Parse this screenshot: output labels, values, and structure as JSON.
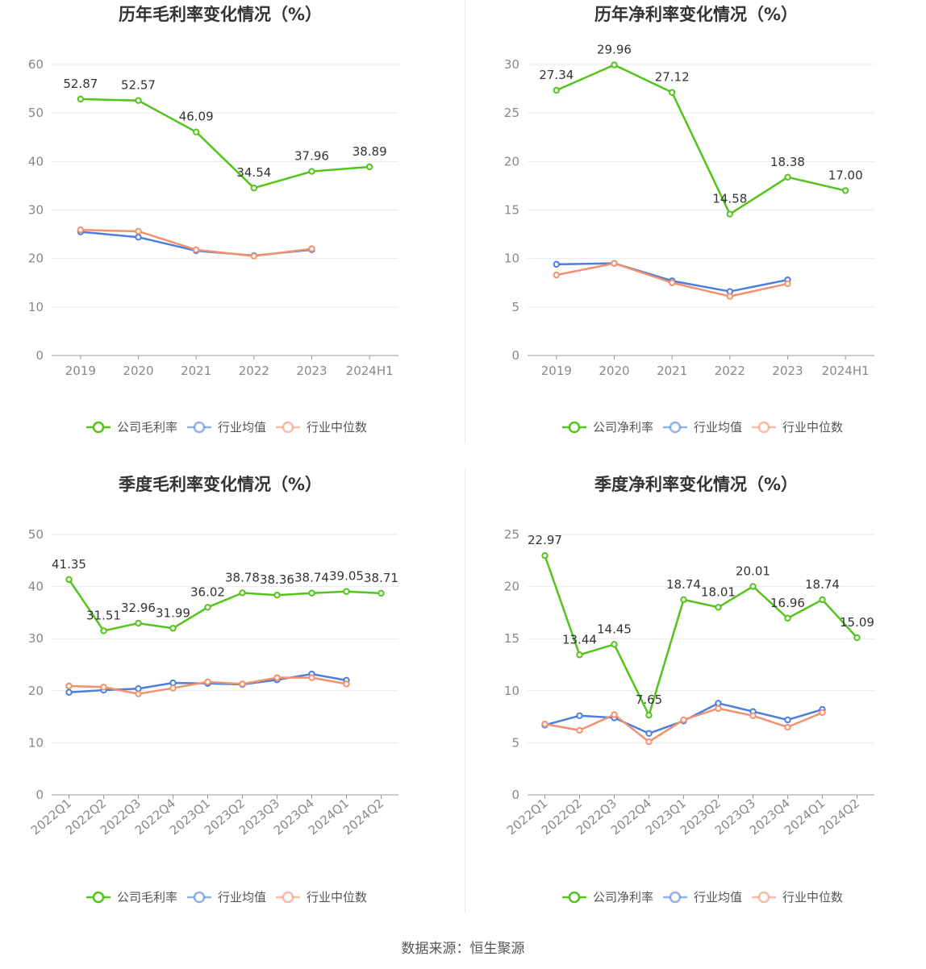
{
  "colors": {
    "company": "#52c41a",
    "avg": "#4a7fe0",
    "median": "#f4906c",
    "grid": "#e6e9f0",
    "axis": "#999999",
    "divider": "#e8e8e8"
  },
  "source_text": "数据来源：恒生聚源",
  "chart_data": [
    {
      "type": "line",
      "title": "历年毛利率变化情况（%）",
      "categories": [
        "2019",
        "2020",
        "2021",
        "2022",
        "2023",
        "2024H1"
      ],
      "ylim": [
        0,
        60
      ],
      "yticks": [
        0,
        10,
        20,
        30,
        40,
        50,
        60
      ],
      "series": [
        {
          "name": "公司毛利率",
          "role": "company",
          "values": [
            52.87,
            52.57,
            46.09,
            34.54,
            37.96,
            38.89
          ],
          "labels": [
            "52.87",
            "52.57",
            "46.09",
            "34.54",
            "37.96",
            "38.89"
          ]
        },
        {
          "name": "行业均值",
          "role": "avg",
          "values": [
            25.5,
            24.4,
            21.6,
            20.6,
            21.8,
            null
          ]
        },
        {
          "name": "行业中位数",
          "role": "median",
          "values": [
            25.9,
            25.6,
            21.8,
            20.5,
            22.0,
            null
          ]
        }
      ]
    },
    {
      "type": "line",
      "title": "历年净利率变化情况（%）",
      "categories": [
        "2019",
        "2020",
        "2021",
        "2022",
        "2023",
        "2024H1"
      ],
      "ylim": [
        0,
        30
      ],
      "yticks": [
        0,
        5,
        10,
        15,
        20,
        25,
        30
      ],
      "series": [
        {
          "name": "公司净利率",
          "role": "company",
          "values": [
            27.34,
            29.96,
            27.12,
            14.58,
            18.38,
            17.0
          ],
          "labels": [
            "27.34",
            "29.96",
            "27.12",
            "14.58",
            "18.38",
            "17.00"
          ]
        },
        {
          "name": "行业均值",
          "role": "avg",
          "values": [
            9.4,
            9.5,
            7.7,
            6.6,
            7.8,
            null
          ]
        },
        {
          "name": "行业中位数",
          "role": "median",
          "values": [
            8.3,
            9.5,
            7.5,
            6.1,
            7.4,
            null
          ]
        }
      ]
    },
    {
      "type": "line",
      "title": "季度毛利率变化情况（%）",
      "categories": [
        "2022Q1",
        "2022Q2",
        "2022Q3",
        "2022Q4",
        "2023Q1",
        "2023Q2",
        "2023Q3",
        "2023Q4",
        "2024Q1",
        "2024Q2"
      ],
      "ylim": [
        0,
        50
      ],
      "yticks": [
        0,
        10,
        20,
        30,
        40,
        50
      ],
      "series": [
        {
          "name": "公司毛利率",
          "role": "company",
          "values": [
            41.35,
            31.51,
            32.96,
            31.99,
            36.02,
            38.78,
            38.36,
            38.74,
            39.05,
            38.71
          ],
          "labels": [
            "41.35",
            "31.51",
            "32.96",
            "31.99",
            "36.02",
            "38.78",
            "38.36",
            "38.74",
            "39.05",
            "38.71"
          ]
        },
        {
          "name": "行业均值",
          "role": "avg",
          "values": [
            19.7,
            20.1,
            20.4,
            21.5,
            21.4,
            21.2,
            22.1,
            23.2,
            22.0,
            null
          ]
        },
        {
          "name": "行业中位数",
          "role": "median",
          "values": [
            20.9,
            20.7,
            19.4,
            20.5,
            21.7,
            21.3,
            22.5,
            22.5,
            21.3,
            null
          ]
        }
      ]
    },
    {
      "type": "line",
      "title": "季度净利率变化情况（%）",
      "categories": [
        "2022Q1",
        "2022Q2",
        "2022Q3",
        "2022Q4",
        "2023Q1",
        "2023Q2",
        "2023Q3",
        "2023Q4",
        "2024Q1",
        "2024Q2"
      ],
      "ylim": [
        0,
        25
      ],
      "yticks": [
        0,
        5,
        10,
        15,
        20,
        25
      ],
      "series": [
        {
          "name": "公司净利率",
          "role": "company",
          "values": [
            22.97,
            13.44,
            14.45,
            7.65,
            18.74,
            18.01,
            20.01,
            16.96,
            18.74,
            15.09
          ],
          "labels": [
            "22.97",
            "13.44",
            "14.45",
            "7.65",
            "18.74",
            "18.01",
            "20.01",
            "16.96",
            "18.74",
            "15.09"
          ]
        },
        {
          "name": "行业均值",
          "role": "avg",
          "values": [
            6.7,
            7.6,
            7.4,
            5.9,
            7.1,
            8.8,
            8.0,
            7.2,
            8.2,
            null
          ]
        },
        {
          "name": "行业中位数",
          "role": "median",
          "values": [
            6.8,
            6.2,
            7.7,
            5.1,
            7.2,
            8.3,
            7.6,
            6.5,
            7.9,
            null
          ]
        }
      ]
    }
  ]
}
